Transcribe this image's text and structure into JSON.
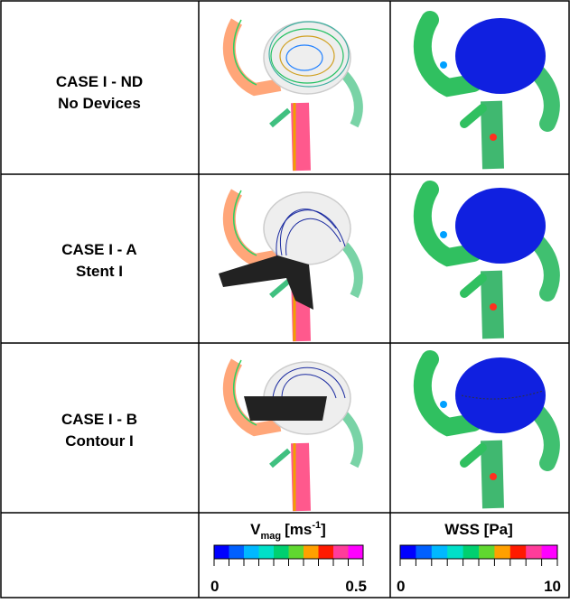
{
  "rows": [
    {
      "case": "CASE I - ND",
      "device": "No Devices"
    },
    {
      "case": "CASE I - A",
      "device": "Stent I"
    },
    {
      "case": "CASE I - B",
      "device": "Contour I"
    }
  ],
  "legends": [
    {
      "symbol": "V",
      "subscript": "mag",
      "unit": "[ms",
      "superscript": "-1",
      "unit_close": "]",
      "min": 0,
      "max": 0.5,
      "colors": [
        "#0000ff",
        "#0060ff",
        "#00b8ff",
        "#00e0c8",
        "#00d070",
        "#60d830",
        "#ffa000",
        "#ff1a00",
        "#ff3c9a",
        "#ff00ff"
      ]
    },
    {
      "title": "WSS [Pa]",
      "min": 0,
      "max": 10,
      "colors": [
        "#0000ff",
        "#0060ff",
        "#00b8ff",
        "#00e0c8",
        "#00d070",
        "#60d830",
        "#ffa000",
        "#ff1a00",
        "#ff3c9a",
        "#ff00ff"
      ]
    }
  ]
}
